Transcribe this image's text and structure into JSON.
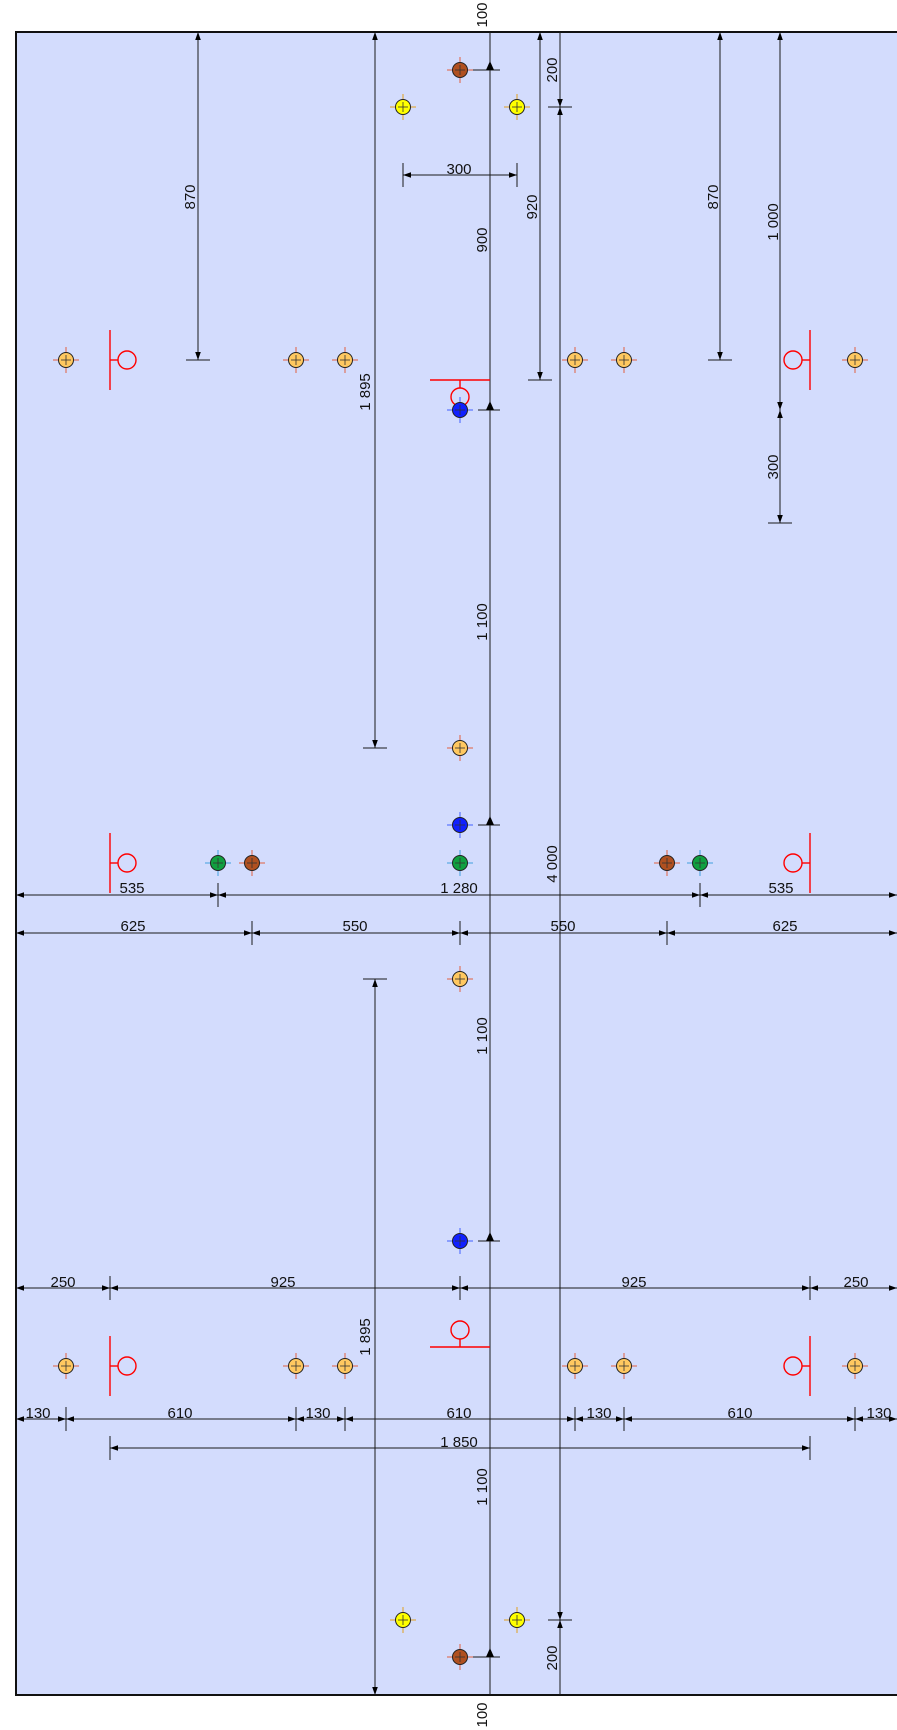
{
  "colors": {
    "panel_fill": "#d3dcfd",
    "outline": "#111111",
    "marker_red": "#ff0000",
    "hole_orange": "#ffc860",
    "hole_yellow": "#ffff00",
    "hole_brown": "#b05020",
    "hole_blue": "#1020ff",
    "hole_green": "#10a040"
  },
  "labels": {
    "top_100": "100",
    "bottom_100": "100",
    "v_200_top": "200",
    "v_200_bottom": "200",
    "v_870_left": "870",
    "v_870_right": "870",
    "h_300": "300",
    "v_920": "920",
    "v_900": "900",
    "v_1000": "1 000",
    "v_1895_top": "1 895",
    "v_1895_bottom": "1 895",
    "v_300_right": "300",
    "v_1100_a": "1 100",
    "v_1100_b": "1 100",
    "v_1100_c": "1 100",
    "v_4000": "4 000",
    "h_535_left": "535",
    "h_1280": "1 280",
    "h_535_right": "535",
    "h_625_left": "625",
    "h_550_left": "550",
    "h_550_right": "550",
    "h_625_right": "625",
    "h_250_left": "250",
    "h_925_left": "925",
    "h_925_right": "925",
    "h_250_right": "250",
    "h_130_a": "130",
    "h_610_a": "610",
    "h_130_b": "130",
    "h_610_b": "610",
    "h_130_c": "130",
    "h_610_c": "610",
    "h_130_d": "130",
    "h_1850": "1 850"
  }
}
